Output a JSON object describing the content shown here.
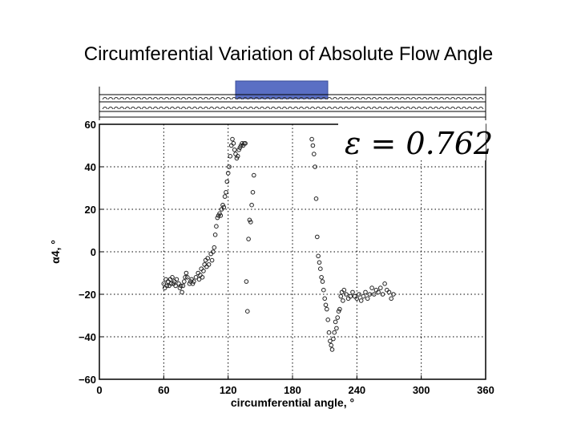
{
  "slide": {
    "title": "Circumferential Variation of Absolute Flow Angle"
  },
  "annotation": {
    "epsilon_text": "ε = 0.762"
  },
  "colors": {
    "blade_band": "#5a6fc4",
    "marker": "#222222"
  },
  "chart_data": {
    "type": "scatter",
    "title": "",
    "xlabel": "circumferential angle, °",
    "ylabel": "α4, °",
    "xlim": [
      0,
      360
    ],
    "ylim": [
      -60,
      60
    ],
    "xticks": [
      0,
      60,
      120,
      180,
      240,
      300,
      360
    ],
    "yticks": [
      -60,
      -40,
      -20,
      0,
      20,
      40,
      60
    ],
    "grid": true,
    "series": [
      {
        "points": [
          [
            60,
            -15
          ],
          [
            61,
            -17
          ],
          [
            62,
            -13
          ],
          [
            63,
            -16
          ],
          [
            64,
            -14
          ],
          [
            65,
            -16
          ],
          [
            66,
            -13
          ],
          [
            67,
            -15
          ],
          [
            68,
            -12
          ],
          [
            69,
            -15
          ],
          [
            70,
            -14
          ],
          [
            71,
            -16
          ],
          [
            72,
            -13
          ],
          [
            74,
            -15
          ],
          [
            75,
            -17
          ],
          [
            76,
            -16
          ],
          [
            77,
            -19
          ],
          [
            78,
            -16
          ],
          [
            79,
            -14
          ],
          [
            80,
            -12
          ],
          [
            81,
            -10
          ],
          [
            82,
            -12
          ],
          [
            84,
            -15
          ],
          [
            85,
            -14
          ],
          [
            86,
            -13
          ],
          [
            87,
            -15
          ],
          [
            88,
            -14
          ],
          [
            90,
            -12
          ],
          [
            92,
            -10
          ],
          [
            93,
            -13
          ],
          [
            94,
            -11
          ],
          [
            95,
            -8
          ],
          [
            96,
            -12
          ],
          [
            97,
            -9
          ],
          [
            98,
            -6
          ],
          [
            99,
            -4
          ],
          [
            100,
            -7
          ],
          [
            101,
            -3
          ],
          [
            102,
            -6
          ],
          [
            104,
            -1
          ],
          [
            105,
            -4
          ],
          [
            106,
            0
          ],
          [
            107,
            2
          ],
          [
            108,
            8
          ],
          [
            109,
            12
          ],
          [
            110,
            16
          ],
          [
            111,
            17
          ],
          [
            112,
            18
          ],
          [
            113,
            17
          ],
          [
            114,
            20
          ],
          [
            115,
            22
          ],
          [
            116,
            21
          ],
          [
            117,
            26
          ],
          [
            118,
            28
          ],
          [
            119,
            33
          ],
          [
            120,
            37
          ],
          [
            121,
            40
          ],
          [
            122,
            45
          ],
          [
            123,
            50
          ],
          [
            124,
            53
          ],
          [
            125,
            51
          ],
          [
            126,
            48
          ],
          [
            127,
            46
          ],
          [
            128,
            44
          ],
          [
            129,
            45
          ],
          [
            130,
            48
          ],
          [
            131,
            49
          ],
          [
            132,
            50
          ],
          [
            133,
            51
          ],
          [
            134,
            50
          ],
          [
            135,
            51
          ],
          [
            136,
            51
          ],
          [
            137,
            -14
          ],
          [
            138,
            -28
          ],
          [
            139,
            6
          ],
          [
            140,
            15
          ],
          [
            141,
            14
          ],
          [
            142,
            22
          ],
          [
            143,
            28
          ],
          [
            144,
            36
          ],
          [
            198,
            53
          ],
          [
            199,
            50
          ],
          [
            200,
            46
          ],
          [
            201,
            40
          ],
          [
            202,
            25
          ],
          [
            203,
            7
          ],
          [
            204,
            -2
          ],
          [
            205,
            -5
          ],
          [
            206,
            -8
          ],
          [
            207,
            -12
          ],
          [
            208,
            -14
          ],
          [
            209,
            -18
          ],
          [
            210,
            -22
          ],
          [
            211,
            -25
          ],
          [
            212,
            -27
          ],
          [
            213,
            -32
          ],
          [
            214,
            -38
          ],
          [
            215,
            -42
          ],
          [
            216,
            -44
          ],
          [
            217,
            -46
          ],
          [
            218,
            -41
          ],
          [
            219,
            -38
          ],
          [
            220,
            -33
          ],
          [
            221,
            -36
          ],
          [
            222,
            -31
          ],
          [
            223,
            -28
          ],
          [
            224,
            -27
          ],
          [
            225,
            -21
          ],
          [
            226,
            -19
          ],
          [
            227,
            -23
          ],
          [
            228,
            -18
          ],
          [
            230,
            -20
          ],
          [
            232,
            -22
          ],
          [
            234,
            -21
          ],
          [
            236,
            -19
          ],
          [
            238,
            -21
          ],
          [
            240,
            -22
          ],
          [
            242,
            -20
          ],
          [
            244,
            -23
          ],
          [
            246,
            -21
          ],
          [
            248,
            -19
          ],
          [
            250,
            -22
          ],
          [
            252,
            -20
          ],
          [
            254,
            -17
          ],
          [
            256,
            -20
          ],
          [
            258,
            -18
          ],
          [
            260,
            -19
          ],
          [
            262,
            -17
          ],
          [
            264,
            -20
          ],
          [
            266,
            -15
          ],
          [
            268,
            -18
          ],
          [
            270,
            -19
          ],
          [
            272,
            -22
          ],
          [
            274,
            -20
          ]
        ]
      }
    ]
  }
}
